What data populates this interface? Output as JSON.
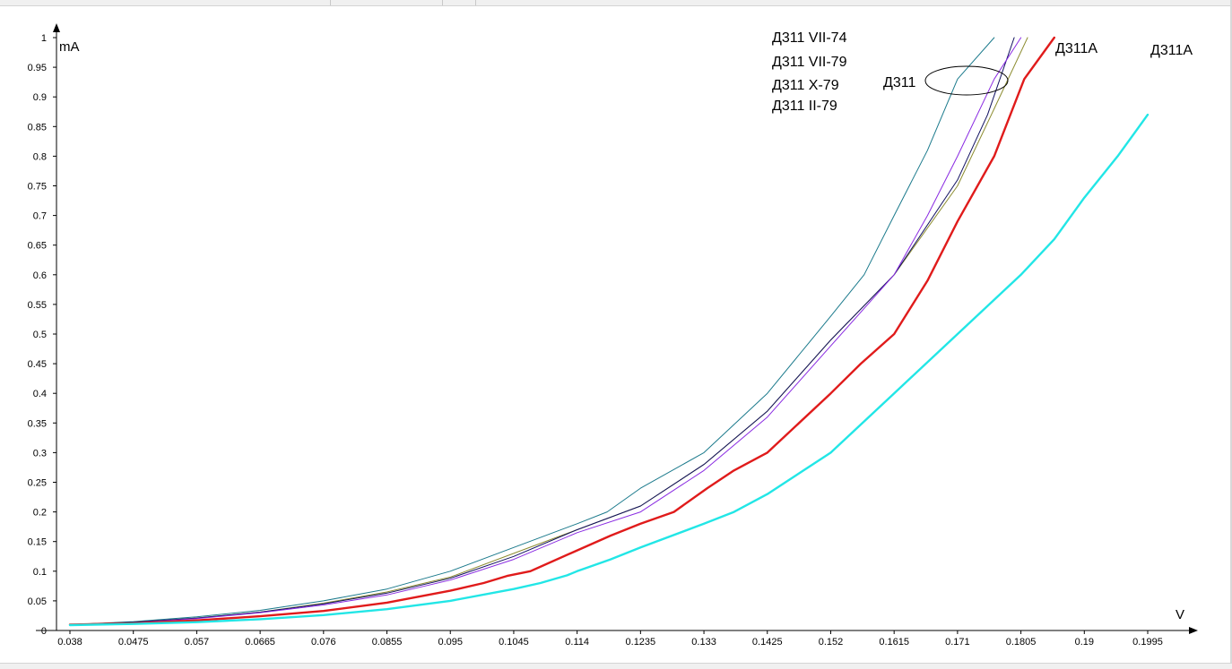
{
  "colors": {
    "background": "#ffffff",
    "axis": "#000000"
  },
  "chart_data": {
    "type": "line",
    "xlabel": "V",
    "ylabel": "mA",
    "xlim": [
      0.038,
      0.2015
    ],
    "ylim": [
      0,
      1
    ],
    "x_ticks": [
      "0.038",
      "0.0475",
      "0.057",
      "0.0665",
      "0.076",
      "0.0855",
      "0.095",
      "0.1045",
      "0.114",
      "0.1235",
      "0.133",
      "0.1425",
      "0.152",
      "0.1615",
      "0.171",
      "0.1805",
      "0.19",
      "0.1995"
    ],
    "y_ticks": [
      "0",
      "0.05",
      "0.1",
      "0.15",
      "0.2",
      "0.25",
      "0.3",
      "0.35",
      "0.4",
      "0.45",
      "0.5",
      "0.55",
      "0.6",
      "0.65",
      "0.7",
      "0.75",
      "0.8",
      "0.85",
      "0.9",
      "0.95",
      "1"
    ],
    "grid": false,
    "annotations": [
      "Д311 VII-74",
      "Д311 VII-79",
      "Д311 X-79",
      "Д311 II-79",
      "Д311",
      "Д311А",
      "Д311А"
    ],
    "series": [
      {
        "color": "#1b7a8c",
        "width": 1,
        "x": [
          0.038,
          0.0475,
          0.057,
          0.0665,
          0.076,
          0.0855,
          0.095,
          0.1045,
          0.114,
          0.1185,
          0.1235,
          0.133,
          0.1425,
          0.152,
          0.157,
          0.1615,
          0.1665,
          0.171,
          0.1765
        ],
        "y": [
          0.01,
          0.015,
          0.023,
          0.034,
          0.05,
          0.07,
          0.1,
          0.14,
          0.18,
          0.2,
          0.24,
          0.3,
          0.4,
          0.53,
          0.6,
          0.7,
          0.81,
          0.93,
          1.0
        ]
      },
      {
        "color": "#8c8c30",
        "width": 1,
        "x": [
          0.038,
          0.0475,
          0.057,
          0.0665,
          0.076,
          0.0855,
          0.095,
          0.1045,
          0.114,
          0.1235,
          0.133,
          0.1425,
          0.152,
          0.1615,
          0.171,
          0.1765,
          0.1815
        ],
        "y": [
          0.01,
          0.014,
          0.021,
          0.031,
          0.046,
          0.065,
          0.09,
          0.13,
          0.17,
          0.21,
          0.28,
          0.37,
          0.49,
          0.6,
          0.75,
          0.88,
          1.0
        ]
      },
      {
        "color": "#101060",
        "width": 1,
        "x": [
          0.038,
          0.0475,
          0.057,
          0.0665,
          0.076,
          0.0855,
          0.095,
          0.1045,
          0.114,
          0.1235,
          0.133,
          0.1425,
          0.152,
          0.1615,
          0.171,
          0.1755,
          0.1795
        ],
        "y": [
          0.01,
          0.014,
          0.021,
          0.031,
          0.045,
          0.063,
          0.088,
          0.125,
          0.17,
          0.21,
          0.28,
          0.37,
          0.49,
          0.6,
          0.76,
          0.87,
          1.0
        ]
      },
      {
        "color": "#8a2be2",
        "width": 1,
        "x": [
          0.038,
          0.0475,
          0.057,
          0.0665,
          0.076,
          0.0855,
          0.095,
          0.1045,
          0.114,
          0.1235,
          0.133,
          0.1425,
          0.152,
          0.1615,
          0.1665,
          0.171,
          0.1765,
          0.1805
        ],
        "y": [
          0.01,
          0.013,
          0.02,
          0.03,
          0.043,
          0.06,
          0.085,
          0.12,
          0.165,
          0.2,
          0.27,
          0.36,
          0.48,
          0.6,
          0.7,
          0.8,
          0.93,
          1.0
        ]
      },
      {
        "color": "#e01b1b",
        "width": 2.4,
        "x": [
          0.038,
          0.0475,
          0.057,
          0.0665,
          0.076,
          0.0855,
          0.095,
          0.1,
          0.1035,
          0.107,
          0.114,
          0.119,
          0.1235,
          0.1285,
          0.1335,
          0.1375,
          0.1425,
          0.152,
          0.1565,
          0.1615,
          0.1665,
          0.171,
          0.1765,
          0.181,
          0.1855
        ],
        "y": [
          0.01,
          0.012,
          0.017,
          0.024,
          0.033,
          0.047,
          0.067,
          0.08,
          0.092,
          0.1,
          0.135,
          0.16,
          0.18,
          0.2,
          0.24,
          0.27,
          0.3,
          0.4,
          0.45,
          0.5,
          0.59,
          0.69,
          0.8,
          0.93,
          1.0
        ]
      },
      {
        "color": "#22e6e6",
        "width": 2.4,
        "x": [
          0.038,
          0.0475,
          0.057,
          0.0665,
          0.076,
          0.0855,
          0.095,
          0.1045,
          0.1085,
          0.1125,
          0.114,
          0.119,
          0.1235,
          0.133,
          0.1375,
          0.1425,
          0.152,
          0.1615,
          0.171,
          0.1805,
          0.1855,
          0.19,
          0.195,
          0.1995
        ],
        "y": [
          0.009,
          0.011,
          0.014,
          0.019,
          0.026,
          0.036,
          0.05,
          0.07,
          0.08,
          0.093,
          0.1,
          0.12,
          0.14,
          0.18,
          0.2,
          0.23,
          0.3,
          0.4,
          0.5,
          0.6,
          0.66,
          0.73,
          0.8,
          0.87
        ]
      }
    ]
  }
}
